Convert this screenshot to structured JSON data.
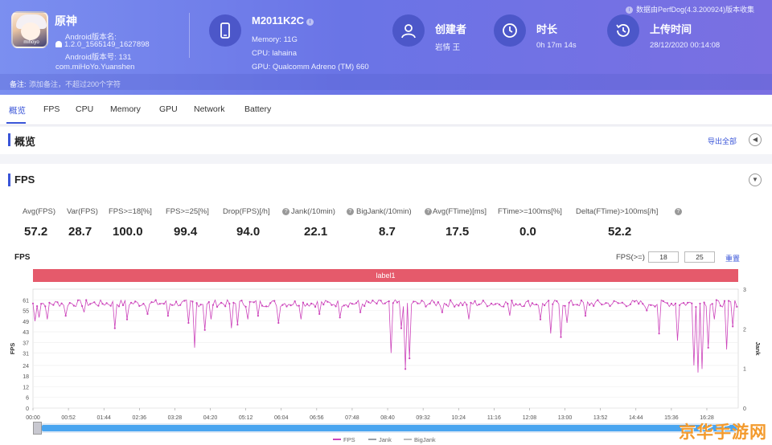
{
  "header": {
    "app": {
      "name": "原神",
      "version_name": "Android版本名:",
      "version_value": "1.2.0_1565149_1627898",
      "version_code": "Android版本号: 131",
      "package": "com.miHoYo.Yuanshen",
      "icon_text": "mihoyo"
    },
    "device": {
      "model": "M2011K2C",
      "memory": "Memory: 11G",
      "cpu": "CPU: lahaina",
      "gpu": "GPU: Qualcomm Adreno (TM) 660"
    },
    "creator": {
      "title": "创建者",
      "value": "岩情 王"
    },
    "duration": {
      "title": "时长",
      "value": "0h 17m 14s"
    },
    "upload": {
      "title": "上传时间",
      "value": "28/12/2020 00:14:08"
    },
    "data_source": "数据由PerfDog(4.3.200924)版本收集",
    "note_label": "备注:",
    "note_placeholder": "添加备注，不超过200个字符"
  },
  "tabs": [
    "概览",
    "FPS",
    "CPU",
    "Memory",
    "GPU",
    "Network",
    "Battery"
  ],
  "overview": {
    "title": "概览",
    "export_label": "导出全部"
  },
  "fps_section": {
    "title": "FPS",
    "metrics": [
      {
        "label": "Avg(FPS)",
        "value": "57.2",
        "help": false
      },
      {
        "label": "Var(FPS)",
        "value": "28.7",
        "help": false
      },
      {
        "label": "FPS>=18[%]",
        "value": "100.0",
        "help": false
      },
      {
        "label": "FPS>=25[%]",
        "value": "99.4",
        "help": false
      },
      {
        "label": "Drop(FPS)[/h]",
        "value": "94.0",
        "help": true
      },
      {
        "label": "Jank(/10min)",
        "value": "22.1",
        "help": true
      },
      {
        "label": "BigJank(/10min)",
        "value": "8.7",
        "help": true
      },
      {
        "label": "Avg(FTime)[ms]",
        "value": "17.5",
        "help": false
      },
      {
        "label": "FTime>=100ms[%]",
        "value": "0.0",
        "help": false
      },
      {
        "label": "Delta(FTime)>100ms[/h]",
        "value": "52.2",
        "help": true
      }
    ],
    "chart_title": "FPS",
    "filter_label": "FPS(>=)",
    "filter_values": [
      "18",
      "25"
    ],
    "reset_label": "重置",
    "label_bar": "label1"
  },
  "watermark": "京华手游网",
  "chart_data": {
    "type": "line",
    "xlabel": "",
    "ylabel": "FPS",
    "y2label": "Jank",
    "ylim": [
      0,
      67
    ],
    "y2lim": [
      0,
      3
    ],
    "yticks": [
      0,
      6,
      12,
      18,
      24,
      31,
      37,
      43,
      49,
      55,
      61
    ],
    "y2ticks": [
      0,
      1,
      2,
      3
    ],
    "xticks": [
      "00:00",
      "00:52",
      "01:44",
      "02:36",
      "03:28",
      "04:20",
      "05:12",
      "06:04",
      "06:56",
      "07:48",
      "08:40",
      "09:32",
      "10:24",
      "11:16",
      "12:08",
      "13:00",
      "13:52",
      "14:44",
      "15:36",
      "16:28"
    ],
    "x_end_seconds": 1034,
    "legend": [
      "FPS",
      "Jank",
      "BigJank"
    ],
    "colors": {
      "FPS": "#cc44bb",
      "Jank": "#9aa0a6",
      "BigJank": "#bbbbbb"
    },
    "base_fps": 59,
    "dips": [
      {
        "t": 5,
        "fps": 49
      },
      {
        "t": 10,
        "fps": 51
      },
      {
        "t": 22,
        "fps": 50
      },
      {
        "t": 48,
        "fps": 52
      },
      {
        "t": 75,
        "fps": 54
      },
      {
        "t": 120,
        "fps": 45
      },
      {
        "t": 140,
        "fps": 50
      },
      {
        "t": 170,
        "fps": 53
      },
      {
        "t": 200,
        "fps": 52
      },
      {
        "t": 228,
        "fps": 48
      },
      {
        "t": 238,
        "fps": 34
      },
      {
        "t": 252,
        "fps": 44
      },
      {
        "t": 262,
        "fps": 50
      },
      {
        "t": 292,
        "fps": 45
      },
      {
        "t": 301,
        "fps": 47
      },
      {
        "t": 315,
        "fps": 50
      },
      {
        "t": 330,
        "fps": 52
      },
      {
        "t": 360,
        "fps": 48
      },
      {
        "t": 395,
        "fps": 50
      },
      {
        "t": 420,
        "fps": 53
      },
      {
        "t": 450,
        "fps": 51
      },
      {
        "t": 480,
        "fps": 54
      },
      {
        "t": 525,
        "fps": 31
      },
      {
        "t": 540,
        "fps": 45
      },
      {
        "t": 548,
        "fps": 22
      },
      {
        "t": 552,
        "fps": 28
      },
      {
        "t": 600,
        "fps": 54
      },
      {
        "t": 640,
        "fps": 50
      },
      {
        "t": 700,
        "fps": 52
      },
      {
        "t": 745,
        "fps": 50
      },
      {
        "t": 760,
        "fps": 42
      },
      {
        "t": 775,
        "fps": 40
      },
      {
        "t": 785,
        "fps": 48
      },
      {
        "t": 810,
        "fps": 52
      },
      {
        "t": 900,
        "fps": 55
      },
      {
        "t": 920,
        "fps": 42
      },
      {
        "t": 945,
        "fps": 38
      },
      {
        "t": 970,
        "fps": 24
      },
      {
        "t": 975,
        "fps": 20
      },
      {
        "t": 982,
        "fps": 22
      },
      {
        "t": 990,
        "fps": 34
      },
      {
        "t": 1000,
        "fps": 50
      },
      {
        "t": 1018,
        "fps": 33
      },
      {
        "t": 1028,
        "fps": 46
      }
    ]
  }
}
